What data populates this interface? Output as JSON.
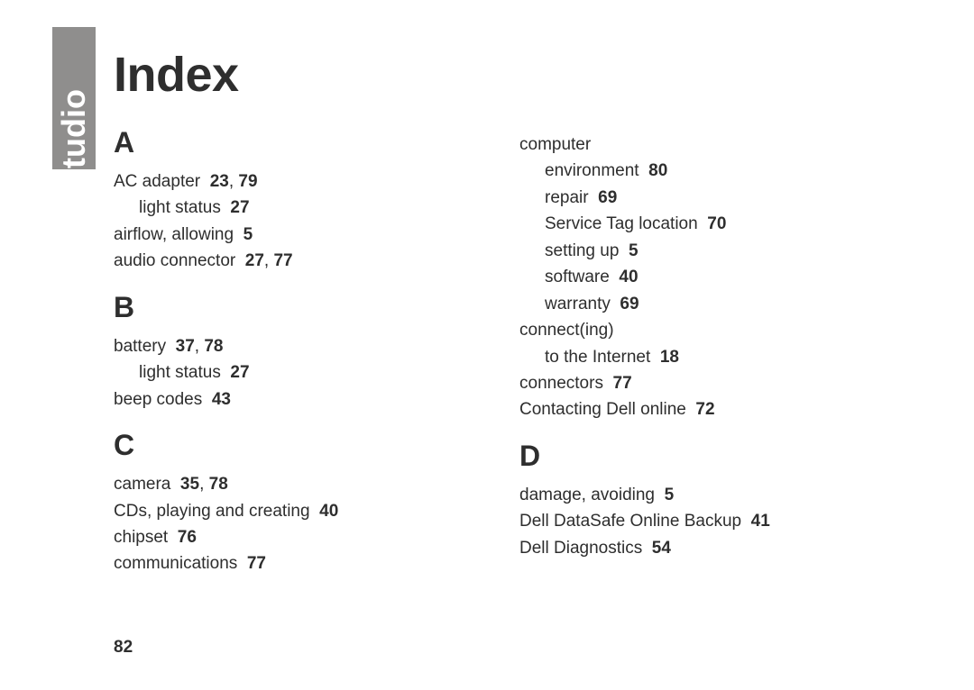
{
  "sideTab": "studio",
  "title": "Index",
  "pageNumber": "82",
  "sections": {
    "A": [
      {
        "text": "AC adapter",
        "pages": "23, 79",
        "indent": 0
      },
      {
        "text": "light status",
        "pages": "27",
        "indent": 1
      },
      {
        "text": "airflow, allowing",
        "pages": "5",
        "indent": 0
      },
      {
        "text": "audio connector",
        "pages": "27, 77",
        "indent": 0
      }
    ],
    "B": [
      {
        "text": "battery",
        "pages": "37, 78",
        "indent": 0
      },
      {
        "text": "light status",
        "pages": "27",
        "indent": 1
      },
      {
        "text": "beep codes",
        "pages": "43",
        "indent": 0
      }
    ],
    "C": [
      {
        "text": "camera",
        "pages": "35, 78",
        "indent": 0
      },
      {
        "text": "CDs, playing and creating",
        "pages": "40",
        "indent": 0
      },
      {
        "text": "chipset",
        "pages": "76",
        "indent": 0
      },
      {
        "text": "communications",
        "pages": "77",
        "indent": 0
      }
    ],
    "C2": [
      {
        "text": "computer",
        "pages": "",
        "indent": 0
      },
      {
        "text": "environment",
        "pages": "80",
        "indent": 1
      },
      {
        "text": "repair",
        "pages": "69",
        "indent": 1
      },
      {
        "text": "Service Tag location",
        "pages": "70",
        "indent": 1
      },
      {
        "text": "setting up",
        "pages": "5",
        "indent": 1
      },
      {
        "text": "software",
        "pages": "40",
        "indent": 1
      },
      {
        "text": "warranty",
        "pages": "69",
        "indent": 1
      },
      {
        "text": "connect(ing)",
        "pages": "",
        "indent": 0
      },
      {
        "text": "to the Internet",
        "pages": "18",
        "indent": 1
      },
      {
        "text": "connectors",
        "pages": "77",
        "indent": 0
      },
      {
        "text": "Contacting Dell online",
        "pages": "72",
        "indent": 0
      }
    ],
    "D": [
      {
        "text": "damage, avoiding",
        "pages": "5",
        "indent": 0
      },
      {
        "text": "Dell DataSafe Online Backup",
        "pages": "41",
        "indent": 0
      },
      {
        "text": "Dell Diagnostics",
        "pages": "54",
        "indent": 0
      }
    ]
  },
  "headings": {
    "A": "A",
    "B": "B",
    "C": "C",
    "D": "D"
  }
}
